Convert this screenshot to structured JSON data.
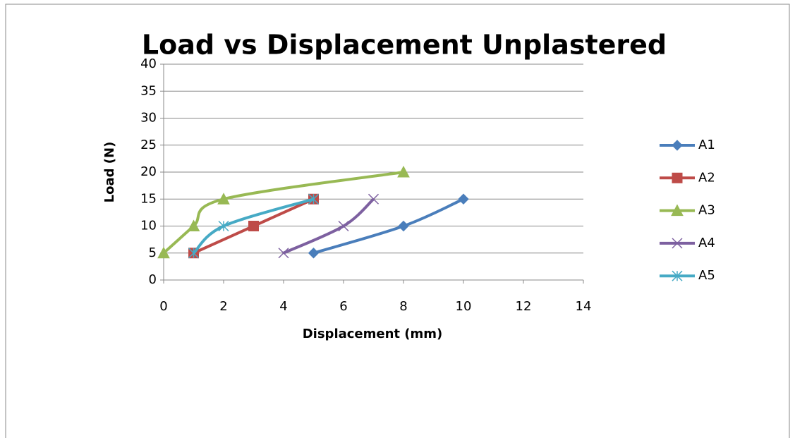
{
  "chart_data": {
    "type": "line",
    "smooth": true,
    "title": "Load vs Displacement Unplastered",
    "x_label": "Displacement (mm)",
    "y_label": "Load (N)",
    "xlim": [
      0,
      14
    ],
    "xticks": [
      0,
      2,
      4,
      6,
      8,
      10,
      12,
      14
    ],
    "ylim": [
      0,
      40
    ],
    "yticks": [
      0,
      5,
      10,
      15,
      20,
      25,
      30,
      35,
      40
    ],
    "grid": true,
    "legend": "right",
    "series": [
      {
        "name": "A1",
        "color": "#4a7ebb",
        "marker": "diamond",
        "x": [
          5,
          8,
          10
        ],
        "values": [
          5,
          10,
          15
        ]
      },
      {
        "name": "A2",
        "color": "#be4b48",
        "marker": "square",
        "x": [
          1,
          3,
          5
        ],
        "values": [
          5,
          10,
          15
        ]
      },
      {
        "name": "A3",
        "color": "#98b954",
        "marker": "triangle",
        "x": [
          0,
          1,
          2,
          8
        ],
        "values": [
          5,
          10,
          15,
          20
        ]
      },
      {
        "name": "A4",
        "color": "#7d60a0",
        "marker": "x",
        "x": [
          4,
          6,
          7
        ],
        "values": [
          5,
          10,
          15
        ]
      },
      {
        "name": "A5",
        "color": "#46aac5",
        "marker": "star",
        "x": [
          1,
          2,
          5
        ],
        "values": [
          5,
          10,
          15
        ]
      }
    ]
  }
}
